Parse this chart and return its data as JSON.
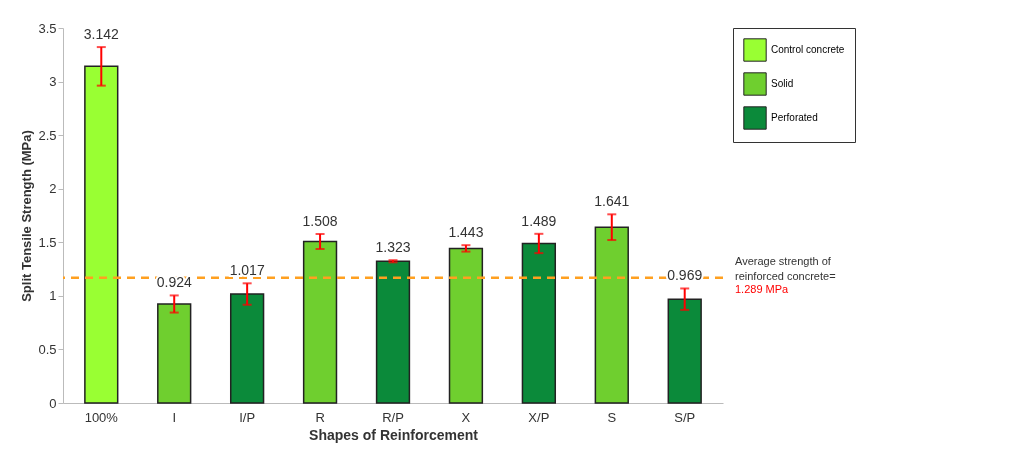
{
  "chart_data": {
    "type": "bar",
    "xlabel": "Shapes of Reinforcement",
    "ylabel": "Split Tensile Strength (MPa)",
    "categories": [
      "100%",
      "I",
      "I/P",
      "R",
      "R/P",
      "X",
      "X/P",
      "S",
      "S/P"
    ],
    "series": [
      {
        "name": "Control concrete",
        "color": "#99ff33",
        "values": [
          3.142,
          null,
          null,
          null,
          null,
          null,
          null,
          null,
          null
        ],
        "errors": [
          0.18,
          null,
          null,
          null,
          null,
          null,
          null,
          null,
          null
        ]
      },
      {
        "name": "Solid",
        "color": "#6fcf2f",
        "values": [
          null,
          0.924,
          null,
          1.508,
          null,
          1.443,
          null,
          1.641,
          null
        ],
        "errors": [
          null,
          0.08,
          null,
          0.07,
          null,
          0.03,
          null,
          0.12,
          null
        ]
      },
      {
        "name": "Perforated",
        "color": "#0b8a3a",
        "values": [
          null,
          null,
          1.017,
          null,
          1.323,
          null,
          1.489,
          null,
          0.969
        ],
        "errors": [
          null,
          null,
          0.1,
          null,
          0.01,
          null,
          0.09,
          null,
          0.1
        ]
      }
    ],
    "ylim": [
      0,
      3.5
    ],
    "yticks": [
      0,
      0.5,
      1,
      1.5,
      2,
      2.5,
      3,
      3.5
    ],
    "data_labels": true,
    "legend": "right",
    "ref_lines": [
      {
        "axis": "y",
        "value": 1.17,
        "label": "Average strength of reinforced concrete=",
        "color": "#ffa020",
        "line_style": "dashed"
      }
    ],
    "annotations": [
      "1.289 MPa"
    ]
  }
}
